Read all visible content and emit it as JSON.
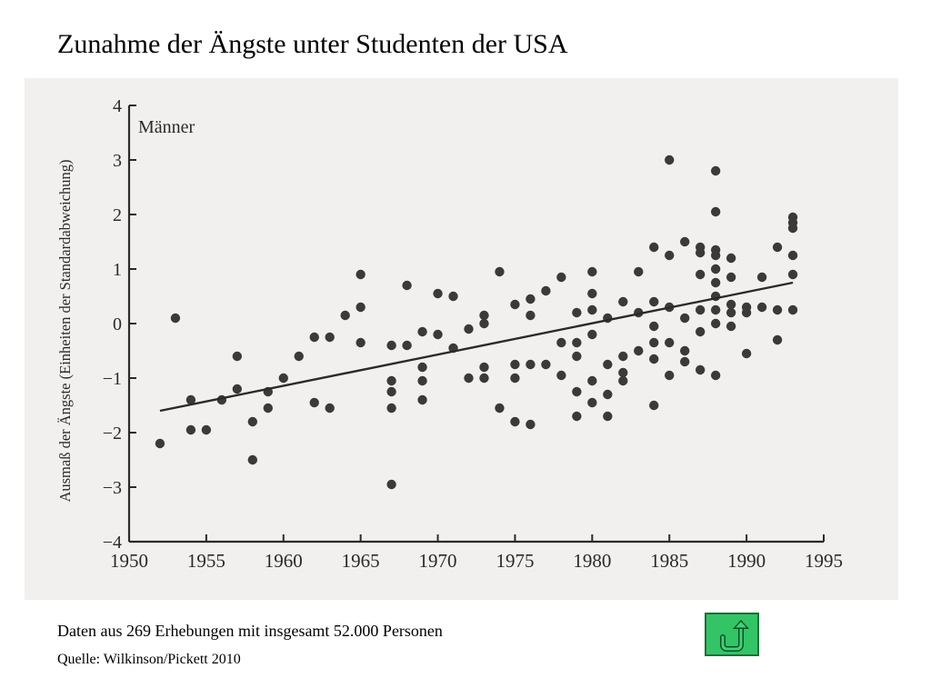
{
  "page": {
    "title": "Zunahme der Ängste unter Studenten der USA",
    "caption": "Daten aus 269 Erhebungen mit insgesamt 52.000 Personen",
    "source": "Quelle: Wilkinson/Pickett 2010",
    "nav_icon": "u-turn-back-arrow-icon",
    "nav_color": "#33c466"
  },
  "chart_data": {
    "type": "scatter",
    "annotation": "Männer",
    "title": "",
    "xlabel": "",
    "ylabel": "Ausmaß der Ängste (Einheiten der Standardabweichung)",
    "xlim": [
      1950,
      1995
    ],
    "ylim": [
      -4,
      4
    ],
    "x_ticks": [
      1950,
      1955,
      1960,
      1965,
      1970,
      1975,
      1980,
      1985,
      1990,
      1995
    ],
    "y_ticks": [
      4,
      3,
      2,
      1,
      0,
      -1,
      -2,
      -3,
      -4
    ],
    "y_tick_labels": [
      "4",
      "3",
      "2",
      "1",
      "0",
      "−1",
      "−2",
      "−3",
      "−4"
    ],
    "point_color": "#3a3a3a",
    "trendline": {
      "x": [
        1952,
        1993
      ],
      "y": [
        -1.6,
        0.75
      ]
    },
    "points": [
      [
        1952,
        -2.2
      ],
      [
        1953,
        0.1
      ],
      [
        1954,
        -1.4
      ],
      [
        1954,
        -1.95
      ],
      [
        1955,
        -1.95
      ],
      [
        1956,
        -1.4
      ],
      [
        1957,
        -0.6
      ],
      [
        1957,
        -1.2
      ],
      [
        1958,
        -1.8
      ],
      [
        1958,
        -2.5
      ],
      [
        1959,
        -1.25
      ],
      [
        1959,
        -1.55
      ],
      [
        1960,
        -1.0
      ],
      [
        1961,
        -0.6
      ],
      [
        1962,
        -0.25
      ],
      [
        1962,
        -1.45
      ],
      [
        1963,
        -0.25
      ],
      [
        1963,
        -1.55
      ],
      [
        1964,
        0.15
      ],
      [
        1965,
        0.9
      ],
      [
        1965,
        0.3
      ],
      [
        1965,
        -0.35
      ],
      [
        1967,
        -0.4
      ],
      [
        1967,
        -1.05
      ],
      [
        1967,
        -1.25
      ],
      [
        1967,
        -1.55
      ],
      [
        1967,
        -2.95
      ],
      [
        1968,
        0.7
      ],
      [
        1968,
        -0.4
      ],
      [
        1969,
        -0.15
      ],
      [
        1969,
        -0.8
      ],
      [
        1969,
        -1.05
      ],
      [
        1969,
        -1.4
      ],
      [
        1970,
        0.55
      ],
      [
        1970,
        -0.2
      ],
      [
        1971,
        0.5
      ],
      [
        1971,
        -0.45
      ],
      [
        1972,
        -0.1
      ],
      [
        1972,
        -1.0
      ],
      [
        1973,
        0.15
      ],
      [
        1973,
        0.0
      ],
      [
        1973,
        -0.8
      ],
      [
        1973,
        -1.0
      ],
      [
        1974,
        0.95
      ],
      [
        1974,
        -1.55
      ],
      [
        1975,
        0.35
      ],
      [
        1975,
        -0.75
      ],
      [
        1975,
        -1.0
      ],
      [
        1975,
        -1.8
      ],
      [
        1976,
        0.45
      ],
      [
        1976,
        0.15
      ],
      [
        1976,
        -0.75
      ],
      [
        1976,
        -1.85
      ],
      [
        1977,
        0.6
      ],
      [
        1977,
        -0.75
      ],
      [
        1978,
        0.85
      ],
      [
        1978,
        -0.35
      ],
      [
        1978,
        -0.95
      ],
      [
        1979,
        0.2
      ],
      [
        1979,
        -0.35
      ],
      [
        1979,
        -0.6
      ],
      [
        1979,
        -1.25
      ],
      [
        1979,
        -1.7
      ],
      [
        1980,
        0.95
      ],
      [
        1980,
        0.55
      ],
      [
        1980,
        0.25
      ],
      [
        1980,
        -0.2
      ],
      [
        1980,
        -1.05
      ],
      [
        1980,
        -1.45
      ],
      [
        1981,
        0.1
      ],
      [
        1981,
        -0.75
      ],
      [
        1981,
        -1.3
      ],
      [
        1981,
        -1.7
      ],
      [
        1982,
        0.4
      ],
      [
        1982,
        -0.6
      ],
      [
        1982,
        -0.9
      ],
      [
        1982,
        -1.05
      ],
      [
        1983,
        0.95
      ],
      [
        1983,
        0.2
      ],
      [
        1983,
        -0.5
      ],
      [
        1984,
        1.4
      ],
      [
        1984,
        0.4
      ],
      [
        1984,
        -0.05
      ],
      [
        1984,
        -0.35
      ],
      [
        1984,
        -0.65
      ],
      [
        1984,
        -1.5
      ],
      [
        1985,
        3.0
      ],
      [
        1985,
        1.25
      ],
      [
        1985,
        0.3
      ],
      [
        1985,
        -0.35
      ],
      [
        1985,
        -0.95
      ],
      [
        1986,
        1.5
      ],
      [
        1986,
        0.1
      ],
      [
        1986,
        -0.5
      ],
      [
        1986,
        -0.7
      ],
      [
        1987,
        1.4
      ],
      [
        1987,
        1.3
      ],
      [
        1987,
        0.9
      ],
      [
        1987,
        0.25
      ],
      [
        1987,
        -0.15
      ],
      [
        1987,
        -0.85
      ],
      [
        1988,
        2.8
      ],
      [
        1988,
        2.05
      ],
      [
        1988,
        1.35
      ],
      [
        1988,
        1.25
      ],
      [
        1988,
        1.0
      ],
      [
        1988,
        0.75
      ],
      [
        1988,
        0.5
      ],
      [
        1988,
        0.25
      ],
      [
        1988,
        0.0
      ],
      [
        1988,
        -0.95
      ],
      [
        1989,
        1.2
      ],
      [
        1989,
        0.85
      ],
      [
        1989,
        0.35
      ],
      [
        1989,
        0.2
      ],
      [
        1989,
        -0.05
      ],
      [
        1990,
        0.3
      ],
      [
        1990,
        0.2
      ],
      [
        1990,
        -0.55
      ],
      [
        1991,
        0.85
      ],
      [
        1991,
        0.3
      ],
      [
        1992,
        1.4
      ],
      [
        1992,
        0.25
      ],
      [
        1992,
        -0.3
      ],
      [
        1993,
        1.95
      ],
      [
        1993,
        1.85
      ],
      [
        1993,
        1.75
      ],
      [
        1993,
        1.25
      ],
      [
        1993,
        0.9
      ],
      [
        1993,
        0.25
      ]
    ]
  }
}
